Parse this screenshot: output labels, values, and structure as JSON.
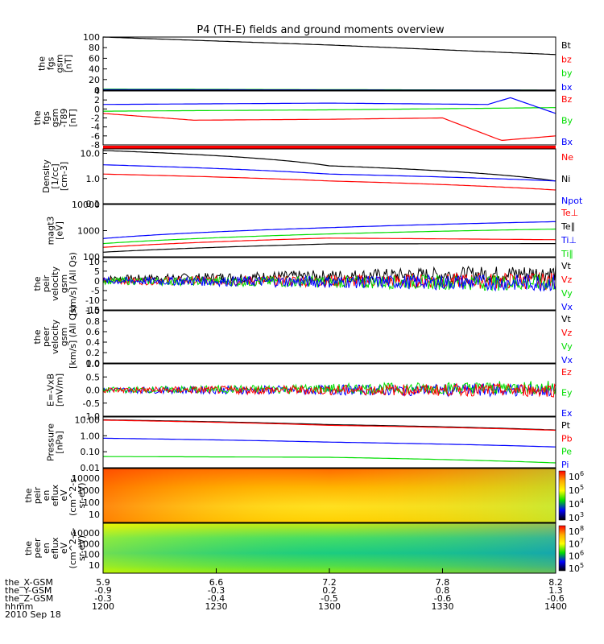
{
  "title": "P4 (TH-E) fields and ground moments overview",
  "date_label": "2010 Sep 18",
  "colors": {
    "black": "#000000",
    "red": "#ff0000",
    "green": "#00dd00",
    "blue": "#0000ff"
  },
  "chart_data": [
    {
      "type": "line",
      "ylabel": [
        "the",
        "fgs",
        "gsm",
        "[nT]"
      ],
      "yticks": [
        "100",
        "80",
        "60",
        "40",
        "20",
        "0"
      ],
      "ylim": [
        0,
        100
      ],
      "legend": [
        {
          "text": "Bt",
          "color": "black"
        },
        {
          "text": "bz",
          "color": "red"
        },
        {
          "text": "by",
          "color": "green"
        },
        {
          "text": "bx",
          "color": "blue"
        }
      ],
      "series": [
        {
          "name": "Bt",
          "color": "black",
          "x": [
            0,
            0.5,
            1
          ],
          "y": [
            100,
            85,
            67
          ]
        },
        {
          "name": "bz",
          "color": "red",
          "x": [
            0,
            1
          ],
          "y": [
            0,
            0
          ]
        },
        {
          "name": "by",
          "color": "green",
          "x": [
            0,
            1
          ],
          "y": [
            2,
            0
          ]
        },
        {
          "name": "bx",
          "color": "blue",
          "x": [
            0,
            1
          ],
          "y": [
            1,
            0
          ]
        }
      ]
    },
    {
      "type": "line",
      "ylabel": [
        "the",
        "fgs",
        "gsm",
        "-T89",
        "[nT]"
      ],
      "yticks": [
        "4",
        "2",
        "0",
        "-2",
        "-4",
        "-6",
        "-8"
      ],
      "ylim": [
        -8,
        4
      ],
      "legend": [
        {
          "text": "Bz",
          "color": "red"
        },
        {
          "text": "By",
          "color": "green"
        },
        {
          "text": "Bx",
          "color": "blue"
        }
      ],
      "series": [
        {
          "name": "Bz",
          "color": "red",
          "x": [
            0,
            0.2,
            0.5,
            0.75,
            0.88,
            1
          ],
          "y": [
            -1,
            -2.5,
            -2.3,
            -2,
            -7,
            -6
          ]
        },
        {
          "name": "By",
          "color": "green",
          "x": [
            0,
            0.5,
            1
          ],
          "y": [
            -0.5,
            -0.2,
            0.3
          ]
        },
        {
          "name": "Bx",
          "color": "blue",
          "x": [
            0,
            0.5,
            0.85,
            0.9,
            1
          ],
          "y": [
            1,
            1.3,
            1,
            2.5,
            -1
          ]
        }
      ]
    },
    {
      "type": "line",
      "ylabel": [
        "Density",
        "[1/cc]",
        "[cm-3]"
      ],
      "yticks": [
        "10.0",
        "1.0",
        "0.1"
      ],
      "ylim": [
        0.1,
        15
      ],
      "log": true,
      "legend": [
        {
          "text": "Ne",
          "color": "red"
        },
        {
          "text": "Ni",
          "color": "black"
        },
        {
          "text": "Npot",
          "color": "blue"
        }
      ],
      "series": [
        {
          "name": "Ni",
          "color": "black",
          "x": [
            0,
            0.5,
            1
          ],
          "y": [
            13,
            3.2,
            0.8
          ]
        },
        {
          "name": "Npot",
          "color": "blue",
          "x": [
            0,
            0.5,
            1
          ],
          "y": [
            3.5,
            1.5,
            0.8
          ]
        },
        {
          "name": "Ne",
          "color": "red",
          "x": [
            0,
            0.5,
            1
          ],
          "y": [
            1.5,
            0.8,
            0.35
          ]
        }
      ]
    },
    {
      "type": "line",
      "ylabel": [
        "magt3",
        "[eV]"
      ],
      "yticks": [
        "10000",
        "1000",
        "100"
      ],
      "ylim": [
        100,
        10000
      ],
      "log": true,
      "legend": [
        {
          "text": "Te⊥",
          "color": "red"
        },
        {
          "text": "Te∥",
          "color": "black"
        },
        {
          "text": "Ti⊥",
          "color": "blue"
        },
        {
          "text": "Ti∥",
          "color": "green"
        }
      ],
      "series": [
        {
          "name": "Ti⊥",
          "color": "blue",
          "x": [
            0,
            0.5,
            1
          ],
          "y": [
            500,
            1300,
            2200
          ]
        },
        {
          "name": "Ti∥",
          "color": "green",
          "x": [
            0,
            0.5,
            1
          ],
          "y": [
            320,
            750,
            1150
          ]
        },
        {
          "name": "Te⊥",
          "color": "red",
          "x": [
            0,
            0.5,
            1
          ],
          "y": [
            230,
            520,
            450
          ]
        },
        {
          "name": "Te∥",
          "color": "black",
          "x": [
            0,
            0.5,
            1
          ],
          "y": [
            150,
            310,
            320
          ]
        }
      ]
    },
    {
      "type": "line",
      "ylabel": [
        "the",
        "peir",
        "velocity",
        "gsm",
        "[km/s] (All Qs)"
      ],
      "yticks": [
        "10",
        "5",
        "0",
        "-5",
        "-10",
        "-15"
      ],
      "ylim": [
        -15,
        12
      ],
      "noisy": true,
      "legend": [
        {
          "text": "Vt",
          "color": "black"
        },
        {
          "text": "Vz",
          "color": "red"
        },
        {
          "text": "Vy",
          "color": "green"
        },
        {
          "text": "Vx",
          "color": "blue"
        }
      ],
      "series": [
        {
          "name": "Vt",
          "color": "black",
          "x": [
            0,
            1
          ],
          "y": [
            1,
            4
          ]
        },
        {
          "name": "Vz",
          "color": "red",
          "x": [
            0,
            1
          ],
          "y": [
            0,
            0
          ]
        },
        {
          "name": "Vy",
          "color": "green",
          "x": [
            0,
            1
          ],
          "y": [
            0,
            -1
          ]
        },
        {
          "name": "Vx",
          "color": "blue",
          "x": [
            0,
            1
          ],
          "y": [
            0,
            -1
          ]
        }
      ]
    },
    {
      "type": "line",
      "ylabel": [
        "the",
        "peer",
        "velocity",
        "gsm",
        "[km/s] (All Qs)"
      ],
      "yticks": [
        "1.0",
        "0.8",
        "0.6",
        "0.4",
        "0.2",
        "0.0"
      ],
      "ylim": [
        0,
        1
      ],
      "legend": [
        {
          "text": "Vt",
          "color": "black"
        },
        {
          "text": "Vz",
          "color": "red"
        },
        {
          "text": "Vy",
          "color": "green"
        },
        {
          "text": "Vx",
          "color": "blue"
        }
      ],
      "series": []
    },
    {
      "type": "line",
      "ylabel": [
        "E=-VxB",
        "[mV/m]"
      ],
      "yticks": [
        "1.0",
        "0.5",
        "0.0",
        "-0.5",
        "-1.0"
      ],
      "ylim": [
        -1,
        1
      ],
      "noisy": true,
      "legend": [
        {
          "text": "Ez",
          "color": "red"
        },
        {
          "text": "Ey",
          "color": "green"
        },
        {
          "text": "Ex",
          "color": "blue"
        }
      ],
      "series": [
        {
          "name": "Ex",
          "color": "blue",
          "x": [
            0,
            1
          ],
          "y": [
            0,
            0
          ]
        },
        {
          "name": "Ey",
          "color": "green",
          "x": [
            0,
            1
          ],
          "y": [
            0,
            0.1
          ]
        },
        {
          "name": "Ez",
          "color": "red",
          "x": [
            0,
            1
          ],
          "y": [
            0,
            0
          ]
        }
      ]
    },
    {
      "type": "line",
      "ylabel": [
        "Pressure",
        "[nPa]"
      ],
      "yticks": [
        "10.00",
        "1.00",
        "0.10",
        "0.01"
      ],
      "ylim": [
        0.01,
        15
      ],
      "log": true,
      "legend": [
        {
          "text": "Pt",
          "color": "black"
        },
        {
          "text": "Pb",
          "color": "red"
        },
        {
          "text": "Pe",
          "color": "green"
        },
        {
          "text": "Pi",
          "color": "blue"
        }
      ],
      "series": [
        {
          "name": "Pt",
          "color": "black",
          "x": [
            0,
            0.5,
            1
          ],
          "y": [
            10,
            5,
            2.3
          ]
        },
        {
          "name": "Pb",
          "color": "red",
          "x": [
            0,
            0.5,
            1
          ],
          "y": [
            9.5,
            4.5,
            2.2
          ]
        },
        {
          "name": "Pi",
          "color": "blue",
          "x": [
            0,
            0.5,
            1
          ],
          "y": [
            0.7,
            0.4,
            0.2
          ]
        },
        {
          "name": "Pe",
          "color": "green",
          "x": [
            0,
            0.5,
            1
          ],
          "y": [
            0.05,
            0.045,
            0.02
          ]
        }
      ]
    },
    {
      "type": "heatmap",
      "ylabel": [
        "the",
        "peir",
        "en",
        "eflux",
        "eV",
        "(cm^2-s-",
        "sr-eV)"
      ],
      "yticks": [
        "10000",
        "1000",
        "100",
        "10"
      ],
      "colorbar_ticks": [
        "10^6",
        "10^5",
        "10^4",
        "10^3"
      ]
    },
    {
      "type": "heatmap",
      "ylabel": [
        "the",
        "peer",
        "en",
        "eflux",
        "eV",
        "(cm^2-s-",
        "sr-eV)"
      ],
      "yticks": [
        "10000",
        "1000",
        "100",
        "10"
      ],
      "colorbar_ticks": [
        "10^8",
        "10^7",
        "10^6",
        "10^5"
      ]
    }
  ],
  "x_axis": {
    "rows": [
      {
        "label": "the_X-GSM",
        "values": [
          "5.9",
          "6.6",
          "7.2",
          "7.8",
          "8.2"
        ]
      },
      {
        "label": "the_Y-GSM",
        "values": [
          "-0.9",
          "-0.3",
          "0.2",
          "0.8",
          "1.3"
        ]
      },
      {
        "label": "the_Z-GSM",
        "values": [
          "-0.3",
          "-0.4",
          "-0.5",
          "-0.6",
          "-0.6"
        ]
      },
      {
        "label": "hhmm",
        "values": [
          "1200",
          "1230",
          "1300",
          "1330",
          "1400"
        ]
      }
    ]
  }
}
